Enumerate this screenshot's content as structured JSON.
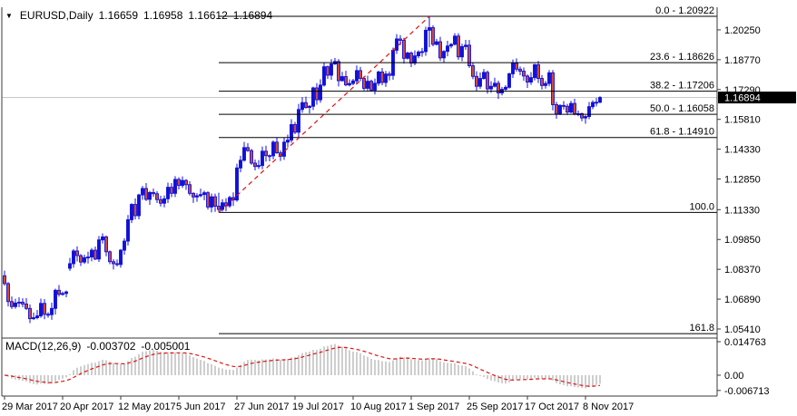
{
  "window": {
    "background": "#FFFFFF"
  },
  "header": {
    "dropdown_icon": "▼",
    "symbol_period": "EURUSD,Daily",
    "open": "1.16659",
    "high": "1.16958",
    "low": "1.16612",
    "close": "1.16894"
  },
  "chart_data": {
    "type": "candlestick",
    "symbol": "EURUSD",
    "timeframe": "Daily",
    "y_axis": {
      "ticks": [
        "1.20250",
        "1.18770",
        "1.17290",
        "1.15810",
        "1.14330",
        "1.12850",
        "1.11330",
        "1.09850",
        "1.08370",
        "1.06890",
        "1.05410"
      ],
      "tick_prices": [
        1.2025,
        1.1877,
        1.1729,
        1.1581,
        1.1433,
        1.1285,
        1.1133,
        1.0985,
        1.0837,
        1.0689,
        1.0541
      ]
    },
    "x_axis": {
      "labels": [
        "29 Mar 2017",
        "20 Apr 2017",
        "12 May 2017",
        "5 Jun 2017",
        "27 Jun 2017",
        "19 Jul 2017",
        "10 Aug 2017",
        "1 Sep 2017",
        "25 Sep 2017",
        "17 Oct 2017",
        "8 Nov 2017"
      ],
      "candles_per_tick": 16
    },
    "current_price": {
      "value": 1.16894,
      "label": "1.16894"
    },
    "fibonacci": {
      "levels": [
        {
          "label": "0.0 - 1.20922",
          "price": 1.20922
        },
        {
          "label": "23.6 - 1.18626",
          "price": 1.18626
        },
        {
          "label": "38.2 - 1.17206",
          "price": 1.17206
        },
        {
          "label": "50.0 - 1.16058",
          "price": 1.16058
        },
        {
          "label": "61.8 - 1.14910",
          "price": 1.1491
        },
        {
          "label": "100.0",
          "price": 1.11193
        },
        {
          "label": "161.8",
          "price": 1.0518
        }
      ],
      "start_candle_index": 59,
      "end_candle_index": 117,
      "start_price": 1.11193,
      "end_price": 1.20922
    },
    "candles": {
      "closes": [
        1.0766,
        1.0677,
        1.0652,
        1.067,
        1.0674,
        1.0665,
        1.0643,
        1.0592,
        1.0597,
        1.0606,
        1.0668,
        1.0614,
        1.0612,
        1.0643,
        1.0733,
        1.0713,
        1.0717,
        1.0725,
        1.0865,
        1.0928,
        1.0905,
        1.0873,
        1.0895,
        1.0898,
        1.0932,
        1.0888,
        1.0983,
        1.0998,
        1.0924,
        1.0875,
        1.0865,
        1.0861,
        1.0932,
        1.0977,
        1.1083,
        1.1159,
        1.1103,
        1.1206,
        1.1238,
        1.1184,
        1.1218,
        1.1212,
        1.1183,
        1.1165,
        1.1187,
        1.1244,
        1.1214,
        1.1283,
        1.1253,
        1.1278,
        1.1257,
        1.1214,
        1.1196,
        1.1202,
        1.1208,
        1.1217,
        1.1146,
        1.1197,
        1.115,
        1.1134,
        1.1167,
        1.1152,
        1.1193,
        1.1181,
        1.134,
        1.1378,
        1.1441,
        1.1426,
        1.1364,
        1.1347,
        1.1352,
        1.1423,
        1.1401,
        1.14,
        1.1468,
        1.1415,
        1.1398,
        1.1468,
        1.1478,
        1.1555,
        1.1517,
        1.163,
        1.1664,
        1.164,
        1.1646,
        1.1737,
        1.1678,
        1.1751,
        1.1842,
        1.18,
        1.1856,
        1.1868,
        1.1773,
        1.1793,
        1.1752,
        1.1759,
        1.1772,
        1.1823,
        1.1784,
        1.1735,
        1.177,
        1.1726,
        1.176,
        1.1816,
        1.1764,
        1.1806,
        1.1799,
        1.1924,
        1.198,
        1.1973,
        1.1884,
        1.191,
        1.186,
        1.1896,
        1.1915,
        1.1917,
        1.2023,
        1.2036,
        1.1953,
        1.1966,
        1.1886,
        1.1918,
        1.1945,
        1.1953,
        1.1994,
        1.1891,
        1.1942,
        1.1949,
        1.1847,
        1.1794,
        1.1745,
        1.1784,
        1.1814,
        1.1732,
        1.1745,
        1.176,
        1.1712,
        1.173,
        1.174,
        1.1807,
        1.1859,
        1.183,
        1.182,
        1.1796,
        1.1766,
        1.1788,
        1.1852,
        1.1784,
        1.1749,
        1.1759,
        1.1812,
        1.1654,
        1.1608,
        1.165,
        1.1646,
        1.1617,
        1.166,
        1.1609,
        1.1609,
        1.1588,
        1.1595,
        1.1644,
        1.1665,
        1.16659,
        1.16894
      ],
      "open_overrides": {
        "0": 1.0805,
        "18": 1.0842,
        "164": 1.16659
      },
      "high_low_overrides": {
        "7": [
          1.0663,
          1.057
        ],
        "59": [
          1.1217,
          1.11193
        ],
        "117": [
          1.20922,
          1.1939
        ],
        "164": [
          1.16958,
          1.16612
        ]
      }
    },
    "macd": {
      "label": "MACD(12,26,9)",
      "macd_value": "-0.003702",
      "signal_value": "-0.005001",
      "fast": 12,
      "slow": 26,
      "signal": 9,
      "scale": {
        "top_label": "0.014763",
        "zero_label": "0.00",
        "bottom_label": "-0.006713",
        "top": 0.014763,
        "zero": 0,
        "bottom": -0.006713
      }
    }
  },
  "colors": {
    "bull": "#1010D8",
    "bear_fill": "#CC4A42",
    "outline_blue": "#1010D8",
    "fib_line": "#000000",
    "signal_red": "#E01010",
    "trendline_red": "#E01010",
    "histogram": "#C2C2C2",
    "price_line": "#C9C9C9",
    "price_tag_bg": "#000000",
    "price_tag_text": "#FFFFFF",
    "frame": "#3A3A3A",
    "text": "#000000"
  }
}
